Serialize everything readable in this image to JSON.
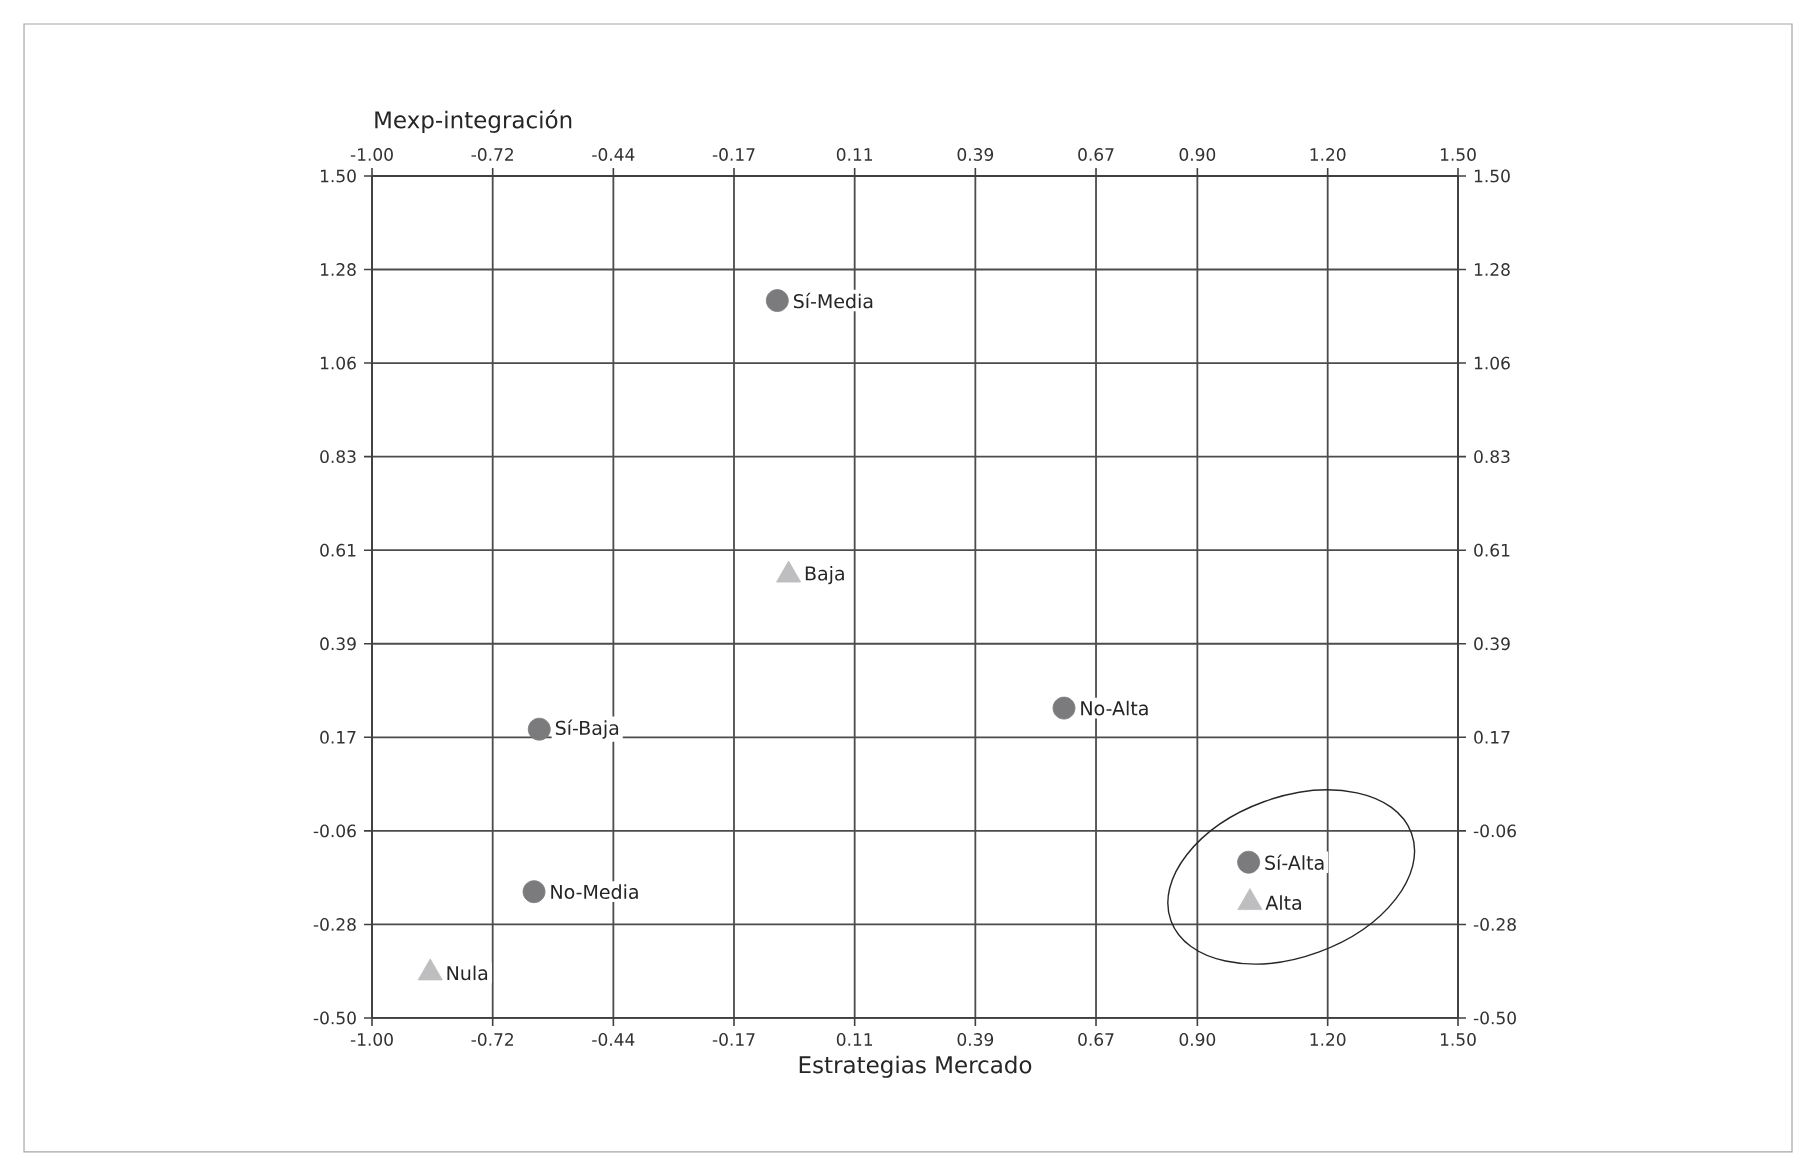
{
  "chart_data": {
    "type": "scatter",
    "xlabel": "Estrategias Mercado",
    "ylabel": "Mexp-integración",
    "series": [
      {
        "color": "#7b7b7d",
        "marker": "circle",
        "x": [
          -0.067,
          -0.615,
          -0.627,
          0.593,
          1.018
        ],
        "values": [
          1.204,
          0.186,
          -0.2,
          0.236,
          -0.13
        ]
      },
      {
        "color": "#bebec0",
        "marker": "triangle",
        "x": [
          -0.041,
          -0.866,
          1.021
        ],
        "values": [
          0.552,
          -0.393,
          -0.226
        ]
      }
    ],
    "annotations": [
      {
        "text": "Sí-Media",
        "x": -0.067,
        "y": 1.204
      },
      {
        "text": "Sí-Baja",
        "x": -0.615,
        "y": 0.186
      },
      {
        "text": "No-Media",
        "x": -0.627,
        "y": -0.2
      },
      {
        "text": "No-Alta",
        "x": 0.593,
        "y": 0.236
      },
      {
        "text": "Sí-Alta",
        "x": 1.018,
        "y": -0.13
      },
      {
        "text": "Baja",
        "x": -0.041,
        "y": 0.552
      },
      {
        "text": "Nula",
        "x": -0.866,
        "y": -0.393
      },
      {
        "text": "Alta",
        "x": 1.021,
        "y": -0.226
      }
    ],
    "xlim": [
      -1.0,
      1.5
    ],
    "xticks": [
      {
        "value": -1.0,
        "label": "-1.00"
      },
      {
        "value": -0.7222,
        "label": "-0.72"
      },
      {
        "value": -0.4444,
        "label": "-0.44"
      },
      {
        "value": -0.1667,
        "label": "-0.17"
      },
      {
        "value": 0.1111,
        "label": "0.11"
      },
      {
        "value": 0.3889,
        "label": "0.39"
      },
      {
        "value": 0.6667,
        "label": "0.67"
      },
      {
        "value": 0.9,
        "label": "0.90"
      },
      {
        "value": 1.2,
        "label": "1.20"
      },
      {
        "value": 1.5,
        "label": "1.50"
      }
    ],
    "x2lim": [
      -1.0,
      1.5
    ],
    "x2ticks": [
      {
        "value": -1.0,
        "label": "-1.00"
      },
      {
        "value": -0.7222,
        "label": "-0.72"
      },
      {
        "value": -0.4444,
        "label": "-0.44"
      },
      {
        "value": -0.1667,
        "label": "-0.17"
      },
      {
        "value": 0.1111,
        "label": "0.11"
      },
      {
        "value": 0.3889,
        "label": "0.39"
      },
      {
        "value": 0.6667,
        "label": "0.67"
      },
      {
        "value": 0.9,
        "label": "0.90"
      },
      {
        "value": 1.2,
        "label": "1.20"
      },
      {
        "value": 1.5,
        "label": "1.50"
      }
    ],
    "ylim": [
      -0.5,
      1.5
    ],
    "yticks": [
      {
        "value": -0.5,
        "label": "-0.50"
      },
      {
        "value": -0.2778,
        "label": "-0.28"
      },
      {
        "value": -0.0556,
        "label": "-0.06"
      },
      {
        "value": 0.1667,
        "label": "0.17"
      },
      {
        "value": 0.3889,
        "label": "0.39"
      },
      {
        "value": 0.6111,
        "label": "0.61"
      },
      {
        "value": 0.8333,
        "label": "0.83"
      },
      {
        "value": 1.0556,
        "label": "1.06"
      },
      {
        "value": 1.2778,
        "label": "1.28"
      },
      {
        "value": 1.5,
        "label": "1.50"
      }
    ],
    "y2lim": [
      -0.5,
      1.5
    ],
    "y2ticks": [
      {
        "value": -0.5,
        "label": "-0.50"
      },
      {
        "value": -0.2778,
        "label": "-0.28"
      },
      {
        "value": -0.0556,
        "label": "-0.06"
      },
      {
        "value": 0.1667,
        "label": "0.17"
      },
      {
        "value": 0.3889,
        "label": "0.39"
      },
      {
        "value": 0.6111,
        "label": "0.61"
      },
      {
        "value": 0.8333,
        "label": "0.83"
      },
      {
        "value": 1.0556,
        "label": "1.06"
      },
      {
        "value": 1.2778,
        "label": "1.28"
      },
      {
        "value": 1.5,
        "label": "1.50"
      }
    ],
    "grid": true
  }
}
